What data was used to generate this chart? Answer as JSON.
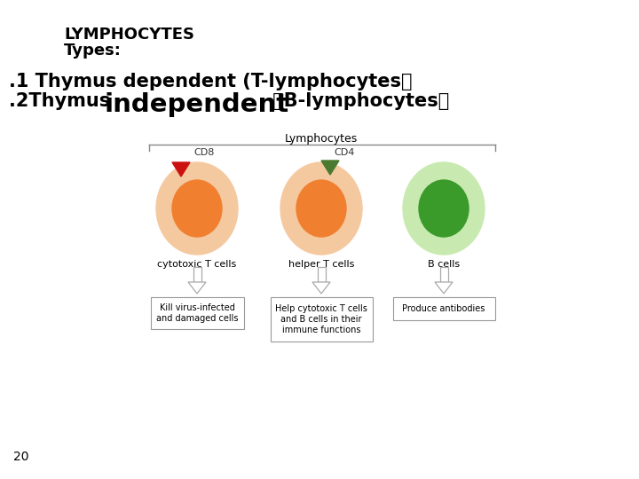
{
  "bg_color": "#ffffff",
  "title_line1": "LYMPHOCYTES",
  "title_line2": "Types:",
  "line1_text": ".1 Thymus dependent (T-lymphocytes）",
  "line2_prefix": ".2Thymus  ",
  "line2_independent": "independent",
  "line2_suffix": " （B-lymphocytes）",
  "lymphocytes_label": "Lymphocytes",
  "cell1_label": "CD8",
  "cell2_label": "CD4",
  "cell1_name": "cytotoxic T cells",
  "cell2_name": "helper T cells",
  "cell3_name": "B cells",
  "box1_text": "Kill virus-infected\nand damaged cells",
  "box2_text": "Help cytotoxic T cells\nand B cells in their\nimmune functions",
  "box3_text": "Produce antibodies",
  "page_num": "20",
  "outer_t_color": "#F5C9A0",
  "inner_t_color": "#F08030",
  "outer_b_color": "#C8EAB0",
  "inner_b_color": "#3A9A2A",
  "marker1_color": "#CC1111",
  "marker2_color": "#4A7A30",
  "label1_color": "#333333",
  "box_edge_color": "#999999",
  "bracket_color": "#888888",
  "arrow_edge_color": "#AAAAAA"
}
